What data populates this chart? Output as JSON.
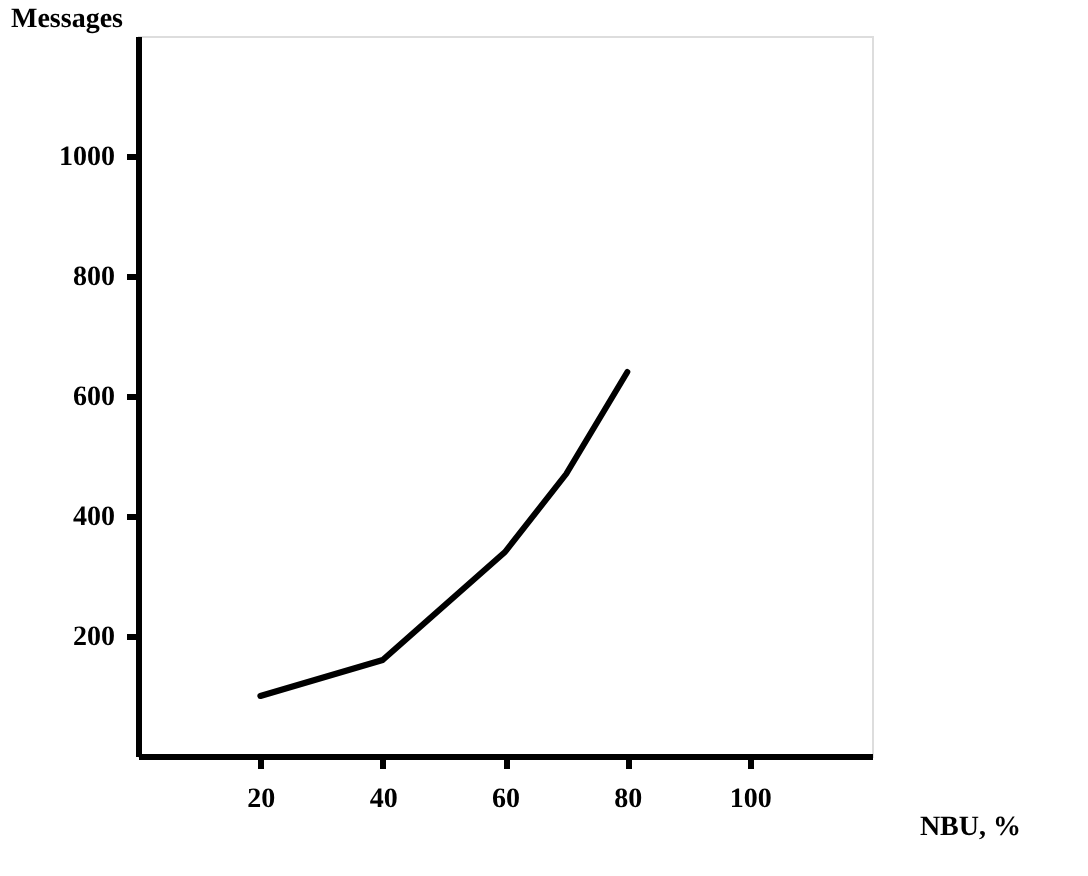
{
  "chart_data": {
    "type": "line",
    "xlabel": "NBU, %",
    "ylabel": "Messages",
    "x": [
      20,
      40,
      60,
      70,
      80
    ],
    "series": [
      {
        "color": "#000000",
        "values": [
          100,
          160,
          340,
          470,
          640
        ]
      }
    ],
    "xlim": [
      0,
      120
    ],
    "xticks": [
      20,
      40,
      60,
      80,
      100
    ],
    "ylim": [
      0,
      1200
    ],
    "yticks": [
      200,
      400,
      600,
      800,
      1000
    ],
    "grid": false,
    "marker": "none",
    "line_style": "solid"
  }
}
